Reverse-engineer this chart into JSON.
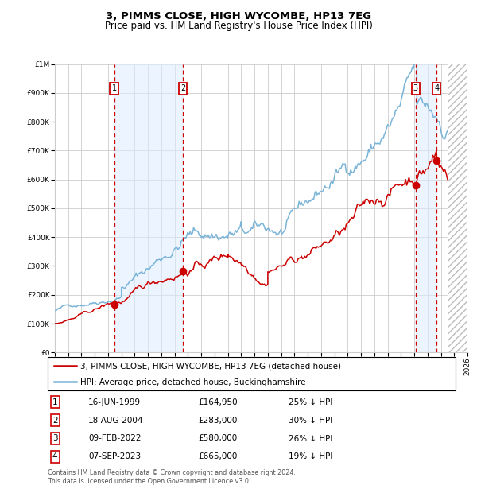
{
  "title": "3, PIMMS CLOSE, HIGH WYCOMBE, HP13 7EG",
  "subtitle": "Price paid vs. HM Land Registry's House Price Index (HPI)",
  "transactions": [
    {
      "num": 1,
      "date": "16-JUN-1999",
      "year": 1999.46,
      "price": 164950,
      "pct": "25% ↓ HPI"
    },
    {
      "num": 2,
      "date": "18-AUG-2004",
      "year": 2004.63,
      "price": 283000,
      "pct": "30% ↓ HPI"
    },
    {
      "num": 3,
      "date": "09-FEB-2022",
      "year": 2022.11,
      "price": 580000,
      "pct": "26% ↓ HPI"
    },
    {
      "num": 4,
      "date": "07-SEP-2023",
      "year": 2023.68,
      "price": 665000,
      "pct": "19% ↓ HPI"
    }
  ],
  "legend_line1": "3, PIMMS CLOSE, HIGH WYCOMBE, HP13 7EG (detached house)",
  "legend_line2": "HPI: Average price, detached house, Buckinghamshire",
  "footer1": "Contains HM Land Registry data © Crown copyright and database right 2024.",
  "footer2": "This data is licensed under the Open Government Licence v3.0.",
  "xmin": 1995,
  "xmax": 2026,
  "ymin": 0,
  "ymax": 1000000,
  "red_line_color": "#cc0000",
  "blue_line_color": "#7ab4d8",
  "grid_color": "#cccccc",
  "dashed_line_color": "#cc0000",
  "shade_color": "#ddeeff",
  "hatch_color": "#bbbbbb",
  "box_color": "#cc0000",
  "title_fontsize": 9.5,
  "subtitle_fontsize": 8.5,
  "tick_fontsize": 6.5,
  "legend_fontsize": 7.5,
  "table_fontsize": 7.5,
  "footer_fontsize": 5.8
}
